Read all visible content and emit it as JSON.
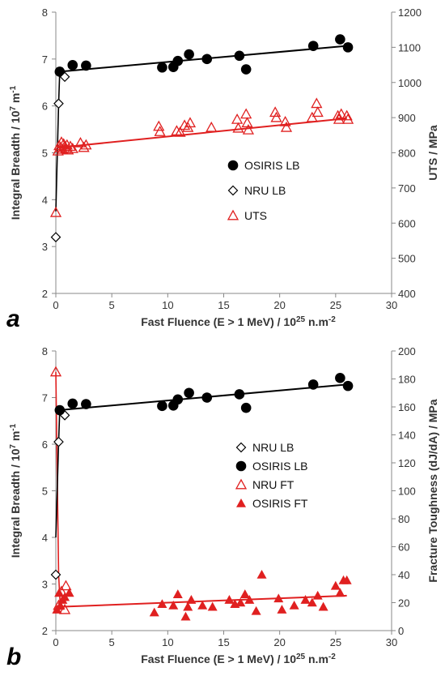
{
  "chart_data": [
    {
      "type": "scatter",
      "panel_label": "a",
      "xlabel_parts": [
        "Fast Fluence (E > 1 MeV) / 10",
        "25",
        " n.m",
        "-2"
      ],
      "ylabel_left_parts": [
        "Integral Breadth / 10",
        "7",
        " m",
        "-1"
      ],
      "ylabel_right": "UTS / MPa",
      "xlim": [
        0,
        30
      ],
      "ylim_left": [
        2,
        8
      ],
      "ylim_right": [
        400,
        1200
      ],
      "x_ticks": [
        "0",
        "5",
        "10",
        "15",
        "20",
        "25",
        "30"
      ],
      "y_ticks_left": [
        "2",
        "3",
        "4",
        "5",
        "6",
        "7",
        "8"
      ],
      "y_ticks_right": [
        "400",
        "500",
        "600",
        "700",
        "800",
        "900",
        "1000",
        "1100",
        "1200"
      ],
      "legend_position": "center-right",
      "series": [
        {
          "name": "OSIRIS LB",
          "axis": "left",
          "marker": "filled-circle",
          "color": "#000000",
          "x": [
            0.35,
            1.5,
            2.7,
            9.5,
            10.5,
            10.9,
            11.9,
            13.5,
            16.4,
            17.0,
            23.0,
            25.4,
            26.1
          ],
          "y": [
            6.73,
            6.87,
            6.86,
            6.82,
            6.83,
            6.96,
            7.1,
            7.0,
            7.07,
            6.78,
            7.28,
            7.42,
            7.25
          ]
        },
        {
          "name": "NRU LB",
          "axis": "left",
          "marker": "open-diamond",
          "color": "#000000",
          "x": [
            0.0,
            0.25,
            0.8
          ],
          "y": [
            3.2,
            6.05,
            6.62
          ]
        },
        {
          "name": "UTS",
          "axis": "right",
          "marker": "open-triangle",
          "color": "#e02020",
          "x": [
            0.0,
            0.2,
            0.3,
            0.4,
            0.5,
            0.6,
            0.7,
            0.8,
            0.9,
            1.0,
            1.1,
            1.3,
            1.5,
            2.2,
            2.5,
            2.7,
            9.2,
            9.3,
            10.8,
            11.1,
            11.5,
            11.8,
            12.0,
            13.9,
            16.2,
            16.3,
            17.0,
            17.1,
            17.2,
            19.6,
            19.7,
            20.5,
            20.6,
            22.9,
            23.3,
            23.4,
            25.2,
            25.3,
            25.5,
            26.0,
            26.1
          ],
          "y": [
            630,
            805,
            820,
            815,
            830,
            810,
            825,
            818,
            812,
            822,
            808,
            818,
            812,
            828,
            815,
            822,
            875,
            860,
            862,
            858,
            878,
            872,
            885,
            872,
            895,
            870,
            910,
            885,
            865,
            915,
            900,
            888,
            872,
            900,
            940,
            915,
            905,
            895,
            910,
            905,
            895
          ]
        },
        {
          "name": "UTS-fit",
          "axis": "right",
          "marker": "line",
          "color": "#e02020",
          "x": [
            0.3,
            26.0
          ],
          "y": [
            815,
            898
          ]
        },
        {
          "name": "LB-fit",
          "axis": "left",
          "marker": "line",
          "color": "#000000",
          "x": [
            0.3,
            26.0
          ],
          "y": [
            6.73,
            7.28
          ]
        },
        {
          "name": "NRU-line",
          "axis": "left",
          "marker": "line",
          "color": "#000000",
          "x": [
            0.0,
            0.25,
            0.35
          ],
          "y": [
            3.75,
            6.05,
            6.73
          ]
        }
      ]
    },
    {
      "type": "scatter",
      "panel_label": "b",
      "xlabel_parts": [
        "Fast Fluence (E > 1 MeV) / 10",
        "25",
        " n.m",
        "-2"
      ],
      "ylabel_left_parts": [
        "Integral Breadth / 10",
        "7",
        " m",
        "-1"
      ],
      "ylabel_right": "Fracture Toughness (dJ/dA) / MPa",
      "xlim": [
        0,
        30
      ],
      "ylim_left": [
        2,
        8
      ],
      "ylim_right": [
        0,
        200
      ],
      "x_ticks": [
        "0",
        "5",
        "10",
        "15",
        "20",
        "25",
        "30"
      ],
      "y_ticks_left": [
        "2",
        "3",
        "4",
        "5",
        "6",
        "7",
        "8"
      ],
      "y_ticks_right": [
        "0",
        "20",
        "40",
        "60",
        "80",
        "100",
        "120",
        "140",
        "160",
        "180",
        "200"
      ],
      "legend_position": "center-right",
      "series": [
        {
          "name": "NRU LB",
          "axis": "left",
          "marker": "open-diamond",
          "color": "#000000",
          "x": [
            0.0,
            0.25,
            0.8
          ],
          "y": [
            3.2,
            6.05,
            6.62
          ]
        },
        {
          "name": "OSIRIS LB",
          "axis": "left",
          "marker": "filled-circle",
          "color": "#000000",
          "x": [
            0.35,
            1.5,
            2.7,
            9.5,
            10.5,
            10.9,
            11.9,
            13.5,
            16.4,
            17.0,
            23.0,
            25.4,
            26.1
          ],
          "y": [
            6.73,
            6.87,
            6.86,
            6.82,
            6.83,
            6.96,
            7.1,
            7.0,
            7.07,
            6.78,
            7.28,
            7.42,
            7.25
          ]
        },
        {
          "name": "NRU FT",
          "axis": "right",
          "marker": "open-triangle",
          "color": "#e02020",
          "x": [
            0.0,
            0.25,
            0.5,
            0.8,
            0.9
          ],
          "y": [
            185,
            18,
            28,
            15,
            32
          ]
        },
        {
          "name": "OSIRIS FT",
          "axis": "right",
          "marker": "filled-triangle",
          "color": "#e02020",
          "x": [
            0.1,
            0.3,
            0.4,
            0.6,
            0.8,
            1.2,
            8.8,
            9.5,
            10.5,
            10.9,
            11.6,
            11.8,
            12.1,
            13.1,
            14.0,
            15.5,
            16.0,
            16.5,
            16.9,
            17.3,
            17.9,
            18.4,
            19.9,
            20.2,
            21.3,
            22.3,
            22.9,
            23.4,
            23.9,
            25.0,
            25.4,
            25.7,
            26.0
          ],
          "y": [
            15,
            27,
            18,
            22,
            24,
            27,
            13,
            19,
            18,
            26,
            10,
            17,
            22,
            18,
            17,
            22,
            19,
            20,
            26,
            22,
            14,
            40,
            23,
            15,
            18,
            22,
            20,
            25,
            17,
            32,
            27,
            36,
            36
          ]
        },
        {
          "name": "FT-fit",
          "axis": "right",
          "marker": "line",
          "color": "#e02020",
          "x": [
            0.4,
            26.0
          ],
          "y": [
            17,
            25
          ]
        },
        {
          "name": "NRU-FT-line",
          "axis": "right",
          "marker": "line",
          "color": "#e02020",
          "x": [
            0.0,
            0.25,
            0.4
          ],
          "y": [
            185,
            40,
            17
          ]
        },
        {
          "name": "LB-fit",
          "axis": "left",
          "marker": "line",
          "color": "#000000",
          "x": [
            0.3,
            26.0
          ],
          "y": [
            6.73,
            7.28
          ]
        },
        {
          "name": "NRU-line",
          "axis": "left",
          "marker": "line",
          "color": "#000000",
          "x": [
            0.0,
            0.25,
            0.35
          ],
          "y": [
            4.0,
            6.05,
            6.73
          ]
        }
      ]
    }
  ],
  "legends": [
    [
      "OSIRIS LB",
      "NRU LB",
      "UTS"
    ],
    [
      "NRU LB",
      "OSIRIS LB",
      "NRU FT",
      "OSIRIS FT"
    ]
  ]
}
